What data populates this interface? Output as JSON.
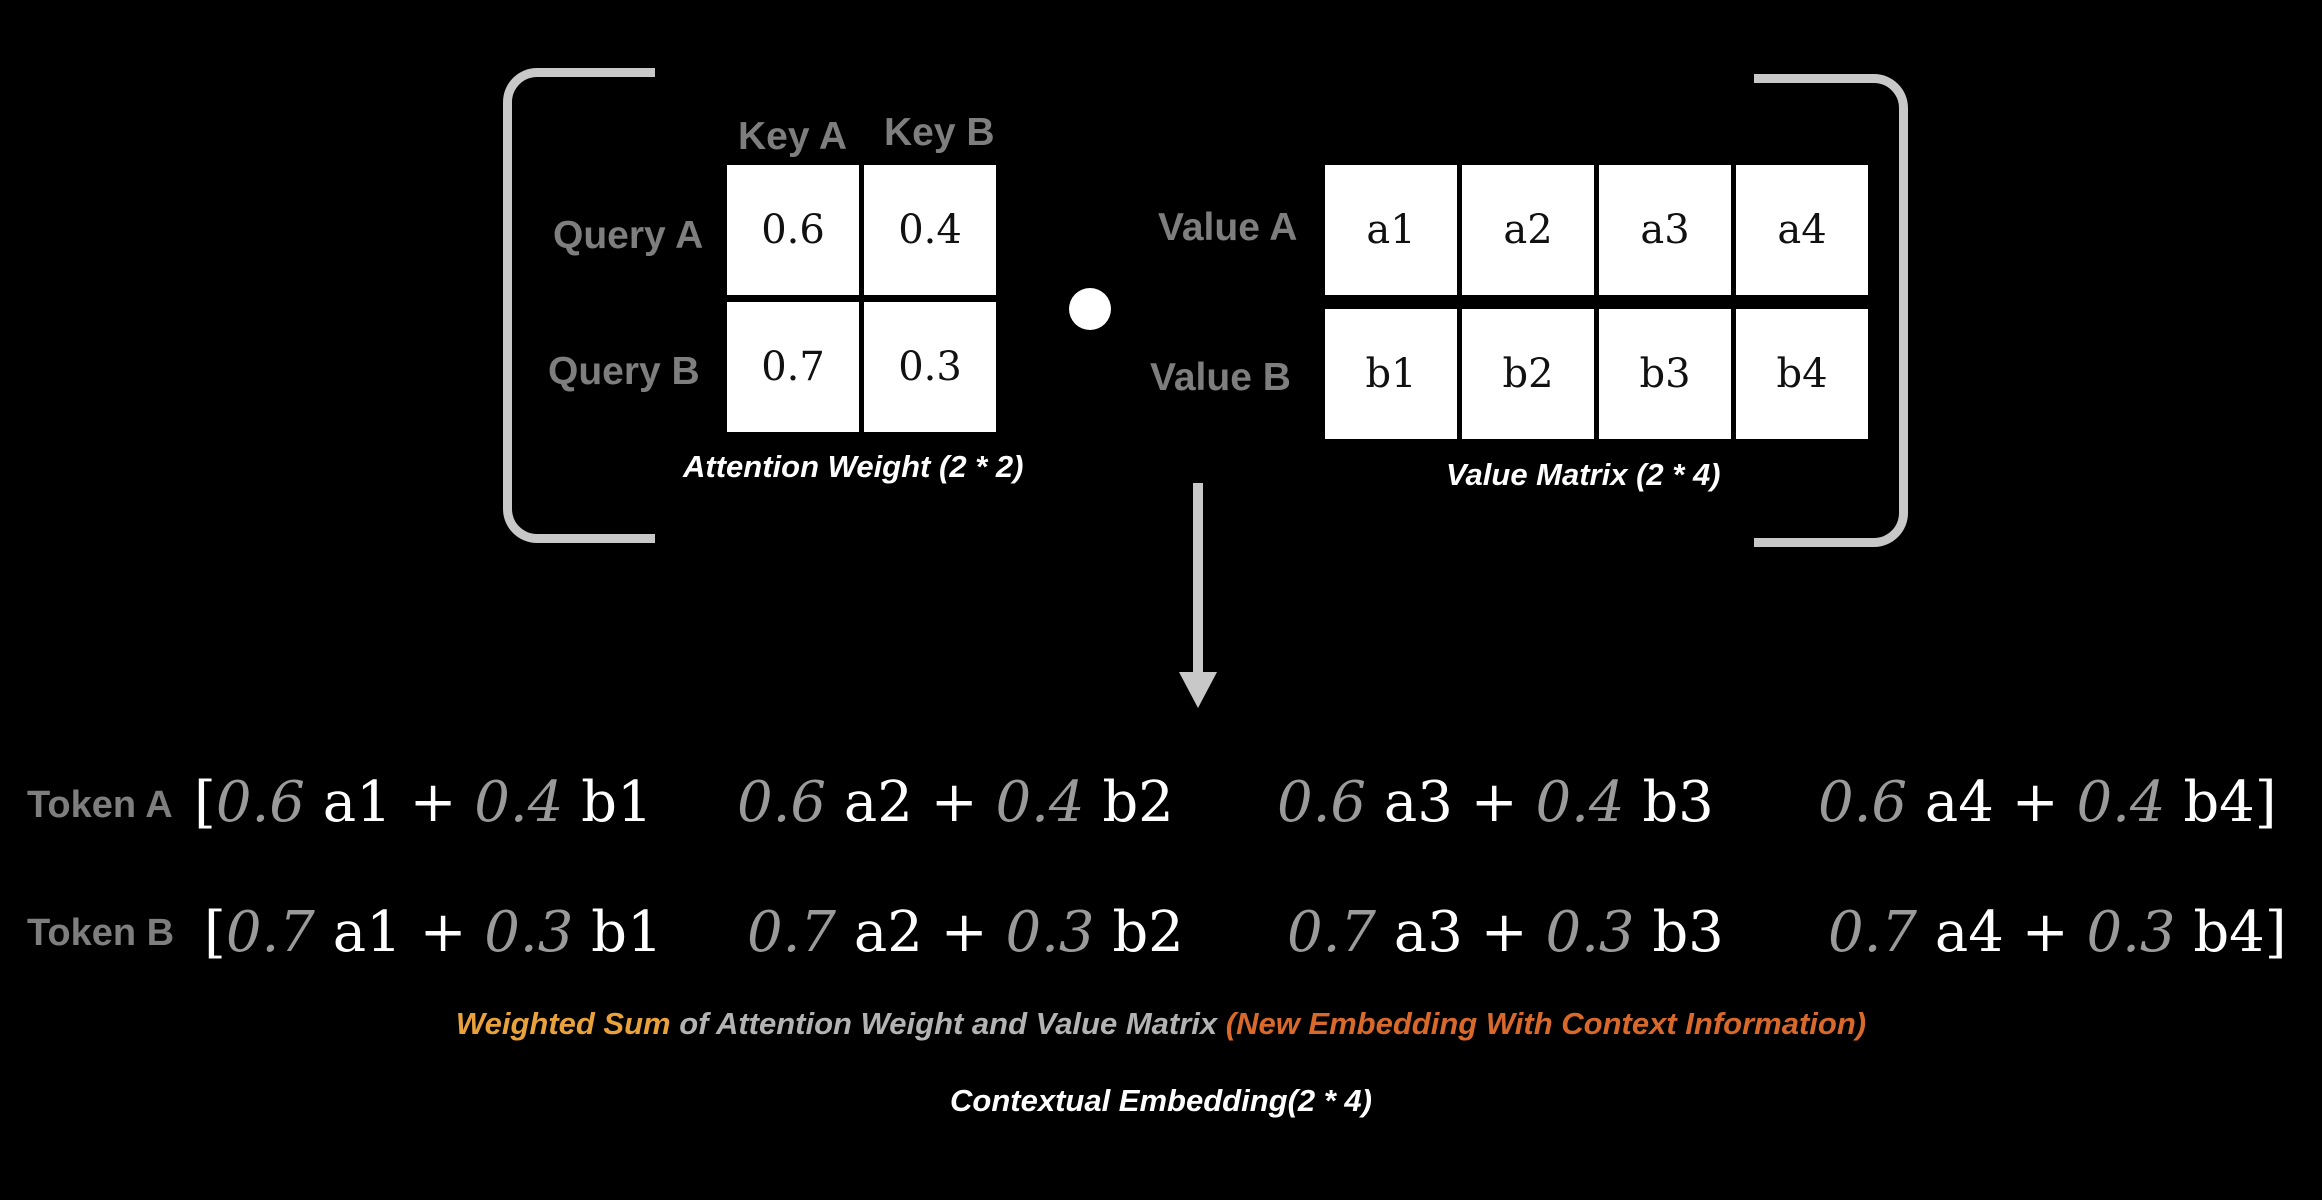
{
  "attention": {
    "keys": [
      "Key A",
      "Key B"
    ],
    "queries": [
      "Query A",
      "Query B"
    ],
    "weights": [
      [
        "0.6",
        "0.4"
      ],
      [
        "0.7",
        "0.3"
      ]
    ],
    "caption": "Attention Weight (2 * 2)"
  },
  "value_matrix": {
    "rows": [
      "Value A",
      "Value B"
    ],
    "cells": [
      [
        "a1",
        "a2",
        "a3",
        "a4"
      ],
      [
        "b1",
        "b2",
        "b3",
        "b4"
      ]
    ],
    "caption": "Value Matrix (2 * 4)"
  },
  "tokens": [
    {
      "label": "Token A",
      "terms": [
        {
          "open": "[",
          "w1": "0.6",
          "v1": "a1",
          "plus": "+",
          "w2": "0.4",
          "v2": "b1",
          "close": ""
        },
        {
          "open": "",
          "w1": "0.6",
          "v1": "a2",
          "plus": "+",
          "w2": "0.4",
          "v2": "b2",
          "close": ""
        },
        {
          "open": "",
          "w1": "0.6",
          "v1": "a3",
          "plus": "+",
          "w2": "0.4",
          "v2": "b3",
          "close": ""
        },
        {
          "open": "",
          "w1": "0.6",
          "v1": "a4",
          "plus": "+",
          "w2": "0.4",
          "v2": "b4",
          "close": "]"
        }
      ]
    },
    {
      "label": "Token B",
      "terms": [
        {
          "open": "[",
          "w1": "0.7",
          "v1": "a1",
          "plus": "+",
          "w2": "0.3",
          "v2": "b1",
          "close": ""
        },
        {
          "open": "",
          "w1": "0.7",
          "v1": "a2",
          "plus": "+",
          "w2": "0.3",
          "v2": "b2",
          "close": ""
        },
        {
          "open": "",
          "w1": "0.7",
          "v1": "a3",
          "plus": "+",
          "w2": "0.3",
          "v2": "b3",
          "close": ""
        },
        {
          "open": "",
          "w1": "0.7",
          "v1": "a4",
          "plus": "+",
          "w2": "0.3",
          "v2": "b4",
          "close": "]"
        }
      ]
    }
  ],
  "summary": {
    "part1": "Weighted Sum",
    "part2": " of Attention Weight and Value Matrix ",
    "part3": "(New Embedding With Context Information)"
  },
  "footer": "Contextual Embedding(2 * 4)",
  "colors": {
    "background": "#000000",
    "label_gray": "#7e7e7e",
    "weight_gray": "#9a9a9a",
    "highlight_orange": "#e9a23b",
    "accent_orange": "#d9692b"
  }
}
